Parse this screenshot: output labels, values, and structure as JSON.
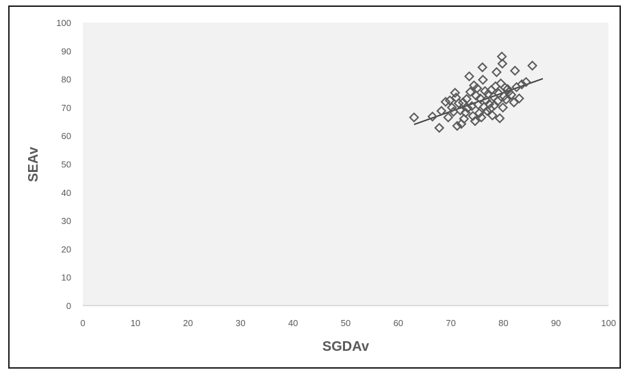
{
  "chart_data": {
    "type": "scatter",
    "title": "",
    "xlabel": "SGDAv",
    "ylabel": "SEAv",
    "xlim": [
      0,
      100
    ],
    "ylim": [
      0,
      100
    ],
    "x_ticks": [
      0,
      10,
      20,
      30,
      40,
      50,
      60,
      70,
      80,
      90,
      100
    ],
    "y_ticks": [
      0,
      10,
      20,
      30,
      40,
      50,
      60,
      70,
      80,
      90,
      100
    ],
    "grid": false,
    "legend": "none",
    "marker": "diamond-open",
    "marker_color": "#595959",
    "plot_background": "#f2f2f2",
    "points": [
      {
        "x": 63.0,
        "y": 66.5
      },
      {
        "x": 66.5,
        "y": 66.8
      },
      {
        "x": 67.8,
        "y": 62.8
      },
      {
        "x": 68.2,
        "y": 68.8
      },
      {
        "x": 69.0,
        "y": 72.0
      },
      {
        "x": 69.5,
        "y": 66.5
      },
      {
        "x": 69.8,
        "y": 72.5
      },
      {
        "x": 70.2,
        "y": 70.0
      },
      {
        "x": 70.5,
        "y": 68.5
      },
      {
        "x": 70.8,
        "y": 75.2
      },
      {
        "x": 71.0,
        "y": 73.5
      },
      {
        "x": 71.2,
        "y": 63.5
      },
      {
        "x": 71.5,
        "y": 71.5
      },
      {
        "x": 71.8,
        "y": 69.0
      },
      {
        "x": 72.0,
        "y": 64.2
      },
      {
        "x": 72.3,
        "y": 71.8
      },
      {
        "x": 72.5,
        "y": 66.0
      },
      {
        "x": 72.8,
        "y": 68.2
      },
      {
        "x": 73.0,
        "y": 73.0
      },
      {
        "x": 73.2,
        "y": 69.8
      },
      {
        "x": 73.5,
        "y": 81.0
      },
      {
        "x": 73.7,
        "y": 75.5
      },
      {
        "x": 74.0,
        "y": 70.5
      },
      {
        "x": 74.2,
        "y": 67.0
      },
      {
        "x": 74.4,
        "y": 77.8
      },
      {
        "x": 74.6,
        "y": 65.2
      },
      {
        "x": 74.8,
        "y": 74.2
      },
      {
        "x": 75.0,
        "y": 76.8
      },
      {
        "x": 75.2,
        "y": 71.0
      },
      {
        "x": 75.4,
        "y": 68.0
      },
      {
        "x": 75.6,
        "y": 73.2
      },
      {
        "x": 75.8,
        "y": 66.5
      },
      {
        "x": 76.0,
        "y": 84.2
      },
      {
        "x": 76.1,
        "y": 79.8
      },
      {
        "x": 76.3,
        "y": 70.2
      },
      {
        "x": 76.5,
        "y": 75.8
      },
      {
        "x": 76.7,
        "y": 72.5
      },
      {
        "x": 76.9,
        "y": 68.8
      },
      {
        "x": 77.1,
        "y": 74.8
      },
      {
        "x": 77.3,
        "y": 71.2
      },
      {
        "x": 77.5,
        "y": 69.5
      },
      {
        "x": 77.7,
        "y": 76.2
      },
      {
        "x": 77.9,
        "y": 67.2
      },
      {
        "x": 78.1,
        "y": 73.8
      },
      {
        "x": 78.3,
        "y": 70.8
      },
      {
        "x": 78.5,
        "y": 77.5
      },
      {
        "x": 78.7,
        "y": 82.5
      },
      {
        "x": 78.9,
        "y": 72.2
      },
      {
        "x": 79.1,
        "y": 75.0
      },
      {
        "x": 79.3,
        "y": 66.2
      },
      {
        "x": 79.5,
        "y": 78.5
      },
      {
        "x": 79.7,
        "y": 88.0
      },
      {
        "x": 79.8,
        "y": 85.5
      },
      {
        "x": 79.9,
        "y": 70.0
      },
      {
        "x": 80.1,
        "y": 74.0
      },
      {
        "x": 80.3,
        "y": 77.0
      },
      {
        "x": 80.5,
        "y": 72.8
      },
      {
        "x": 80.8,
        "y": 76.5
      },
      {
        "x": 81.0,
        "y": 75.5
      },
      {
        "x": 81.5,
        "y": 74.5
      },
      {
        "x": 82.0,
        "y": 71.8
      },
      {
        "x": 82.2,
        "y": 83.0
      },
      {
        "x": 82.5,
        "y": 77.2
      },
      {
        "x": 83.0,
        "y": 73.2
      },
      {
        "x": 83.5,
        "y": 78.2
      },
      {
        "x": 84.3,
        "y": 79.0
      },
      {
        "x": 85.5,
        "y": 84.8
      }
    ],
    "trendline": {
      "type": "linear",
      "x": [
        63.0,
        87.5
      ],
      "y": [
        64.0,
        80.2
      ],
      "color": "#404040"
    }
  }
}
